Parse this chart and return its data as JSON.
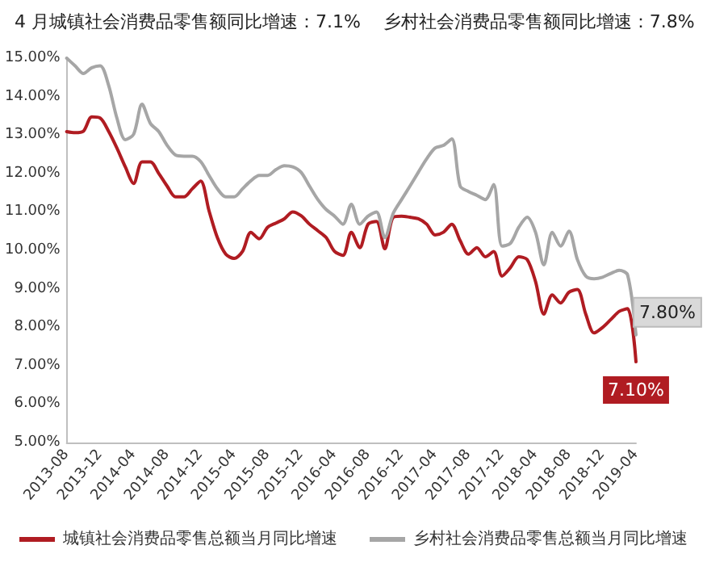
{
  "chart_data": {
    "type": "line",
    "title": "4 月城镇社会消费品零售额同比增速：7.1%    乡村社会消费品零售额同比增速：7.8%",
    "categories": [
      "2013-08",
      null,
      null,
      null,
      "2013-12",
      null,
      null,
      null,
      "2014-04",
      null,
      null,
      null,
      "2014-08",
      null,
      null,
      null,
      "2014-12",
      null,
      null,
      null,
      "2015-04",
      null,
      null,
      null,
      "2015-08",
      null,
      null,
      null,
      "2015-12",
      null,
      null,
      null,
      "2016-04",
      null,
      null,
      null,
      "2016-08",
      null,
      null,
      null,
      "2016-12",
      null,
      null,
      null,
      "2017-04",
      null,
      null,
      null,
      "2017-08",
      null,
      null,
      null,
      "2017-12",
      null,
      null,
      null,
      "2018-04",
      null,
      null,
      null,
      "2018-08",
      null,
      null,
      null,
      "2018-12",
      null,
      null,
      null,
      "2019-04"
    ],
    "series": [
      {
        "name": "城镇社会消费品零售总额当月同比增速",
        "color": "#b01c22",
        "values": [
          13.09,
          13.06,
          13.1,
          13.47,
          13.44,
          13.1,
          12.66,
          12.17,
          11.74,
          12.3,
          12.3,
          12.0,
          11.67,
          11.39,
          11.39,
          11.6,
          11.8,
          11.03,
          10.33,
          9.9,
          9.79,
          9.97,
          10.47,
          10.3,
          10.6,
          10.71,
          10.82,
          11.0,
          10.9,
          10.68,
          10.51,
          10.33,
          9.97,
          9.87,
          10.47,
          10.07,
          10.68,
          10.75,
          10.04,
          10.86,
          10.89,
          10.86,
          10.82,
          10.68,
          10.4,
          10.47,
          10.68,
          10.25,
          9.9,
          10.07,
          9.83,
          9.97,
          9.33,
          9.55,
          9.83,
          9.76,
          9.19,
          8.34,
          8.84,
          8.63,
          8.91,
          8.98,
          8.34,
          7.85,
          7.99,
          8.2,
          8.41,
          8.48,
          7.1
        ],
        "value_labels": [
          null,
          null,
          null,
          null,
          null,
          null,
          null,
          null,
          null,
          null,
          null,
          null,
          null,
          null,
          null,
          null,
          null,
          null,
          null,
          null,
          null,
          null,
          null,
          null,
          null,
          null,
          null,
          null,
          null,
          null,
          null,
          null,
          null,
          null,
          null,
          null,
          null,
          null,
          null,
          null,
          null,
          null,
          null,
          null,
          null,
          null,
          null,
          null,
          null,
          null,
          null,
          null,
          null,
          null,
          null,
          null,
          null,
          null,
          null,
          null,
          null,
          null,
          null,
          null,
          null,
          null,
          null,
          null,
          "7.10%"
        ]
      },
      {
        "name": "乡村社会消费品零售总额当月同比增速",
        "color": "#a6a6a6",
        "values": [
          15.0,
          14.8,
          14.6,
          14.75,
          14.8,
          14.3,
          13.44,
          12.88,
          13.02,
          13.8,
          13.3,
          13.09,
          12.73,
          12.48,
          12.45,
          12.45,
          12.31,
          11.95,
          11.6,
          11.39,
          11.39,
          11.6,
          11.81,
          11.95,
          11.95,
          12.1,
          12.2,
          12.17,
          12.03,
          11.67,
          11.32,
          11.06,
          10.89,
          10.68,
          11.2,
          10.68,
          10.89,
          11.0,
          10.33,
          10.96,
          11.32,
          11.67,
          12.03,
          12.38,
          12.66,
          12.73,
          12.9,
          11.67,
          11.53,
          11.43,
          11.32,
          11.71,
          10.11,
          10.18,
          10.6,
          10.86,
          10.47,
          9.62,
          10.47,
          10.11,
          10.5,
          9.76,
          9.33,
          9.26,
          9.3,
          9.4,
          9.48,
          9.36,
          7.8
        ],
        "value_labels": [
          null,
          null,
          null,
          null,
          null,
          null,
          null,
          null,
          null,
          null,
          null,
          null,
          null,
          null,
          null,
          null,
          null,
          null,
          null,
          null,
          null,
          null,
          null,
          null,
          null,
          null,
          null,
          null,
          null,
          null,
          null,
          null,
          null,
          null,
          null,
          null,
          null,
          null,
          null,
          null,
          null,
          null,
          null,
          null,
          null,
          null,
          null,
          null,
          null,
          null,
          null,
          null,
          null,
          null,
          null,
          null,
          null,
          null,
          null,
          null,
          null,
          null,
          null,
          null,
          null,
          null,
          null,
          null,
          "7.80%"
        ]
      }
    ],
    "ylim": [
      5,
      15
    ],
    "yticks": [
      {
        "value": 5,
        "label": "5.00%"
      },
      {
        "value": 6,
        "label": "6.00%"
      },
      {
        "value": 7,
        "label": "7.00%"
      },
      {
        "value": 8,
        "label": "8.00%"
      },
      {
        "value": 9,
        "label": "9.00%"
      },
      {
        "value": 10,
        "label": "10.00%"
      },
      {
        "value": 11,
        "label": "11.00%"
      },
      {
        "value": 12,
        "label": "12.00%"
      },
      {
        "value": 13,
        "label": "13.00%"
      },
      {
        "value": 14,
        "label": "14.00%"
      },
      {
        "value": 15,
        "label": "15.00%"
      }
    ],
    "grid": false,
    "legend": "bottom",
    "marker": "none",
    "line_style": "solid"
  }
}
